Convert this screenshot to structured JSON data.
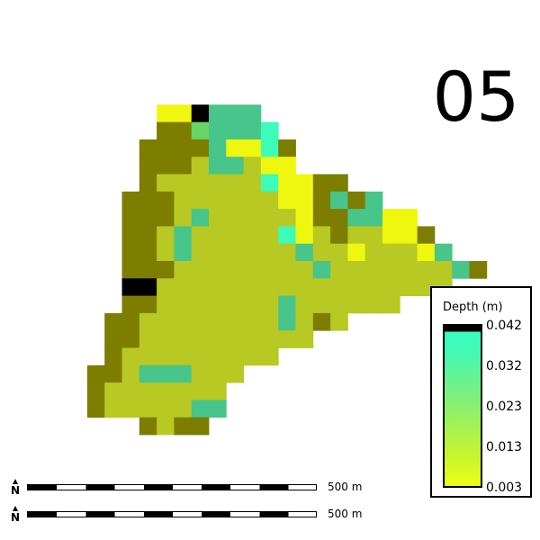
{
  "frame_label": "05",
  "legend": {
    "title": "Depth (m)",
    "ticks": [
      "0.042",
      "0.032",
      "0.023",
      "0.013",
      "0.003"
    ],
    "colors": {
      "max": "#000000",
      "high": "#3dfbb8",
      "mid": "#80ef7a",
      "low": "#c6f430",
      "min": "#eaff17"
    }
  },
  "scalebars": [
    {
      "label": "500 m",
      "north_letter": "N"
    },
    {
      "label": "500 m",
      "north_letter": "N"
    }
  ],
  "grid": {
    "rows": [
      "...........................",
      ".......@@#:::..............",
      ".......!!-:::+.............",
      "......!!!!:@@+!............",
      "......!!!;::;@@............",
      "......!;;;;;;+@@!!.........",
      ".....!!!;;;;;;@@!:!:.......",
      ".....!!!;:;;;;;@!!::@@.....",
      ".....!!;:;;;;;+@;!;;@@!....",
      ".....!!;:;;;;;;:;;@;;;@:...",
      ".....!!!;;;;;;;;:;;;;;;;:!.",
      ".....##;;;;;;;;;;;;;;;;;...",
      ".....!!;;;;;;;:;;;;;;......",
      "....!!;;;;;;;;:;!;.........",
      "....!!;;;;;;;;;;...........",
      "....!;;;;;;;;;.............",
      "...!!;:::;;;...............",
      "...!;;;;;;;................",
      "...!;;;;;::................",
      "......!;!!.................",
      "..........................."
    ],
    "palette": {
      "!": "#7d7d00",
      "#": "#000000",
      ":": "#47c58a",
      ";": "#b7c922",
      "+": "#3dfbb8",
      "-": "#6bd468",
      "@": "#f0f70e"
    }
  }
}
